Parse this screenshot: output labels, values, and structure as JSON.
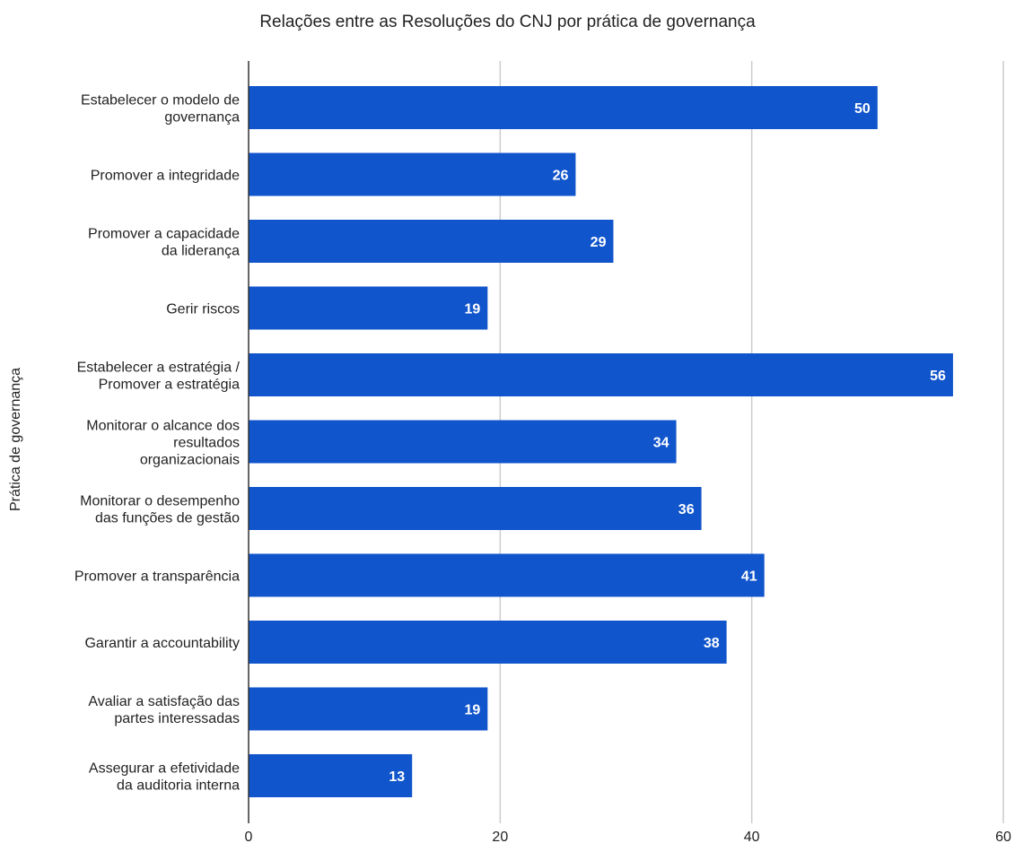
{
  "chart_data": {
    "type": "bar",
    "orientation": "horizontal",
    "title": "Relações entre as Resoluções do CNJ por prática de governança",
    "xlabel": "",
    "ylabel": "Prática de governança",
    "categories": [
      [
        "Estabelecer o modelo de",
        "governança"
      ],
      [
        "Promover a integridade"
      ],
      [
        "Promover a capacidade",
        "da liderança"
      ],
      [
        "Gerir riscos"
      ],
      [
        "Estabelecer a estratégia /",
        "Promover a estratégia"
      ],
      [
        "Monitorar o alcance dos",
        "resultados",
        "organizacionais"
      ],
      [
        "Monitorar o desempenho",
        "das funções de gestão"
      ],
      [
        "Promover a transparência"
      ],
      [
        "Garantir a accountability"
      ],
      [
        "Avaliar a satisfação das",
        "partes interessadas"
      ],
      [
        "Assegurar a efetividade",
        "da auditoria interna"
      ]
    ],
    "values": [
      50,
      26,
      29,
      19,
      56,
      34,
      36,
      41,
      38,
      19,
      13
    ],
    "data_labels": [
      "50",
      "26",
      "29",
      "19",
      "56",
      "34",
      "36",
      "41",
      "38",
      "19",
      "13"
    ],
    "xlim": [
      0,
      60
    ],
    "x_ticks": [
      0,
      20,
      40,
      60
    ],
    "x_tick_labels": [
      "0",
      "20",
      "40",
      "60"
    ],
    "grid": "vertical",
    "legend": "none",
    "colors": {
      "bar": "#1155cc",
      "bar_label": "#ffffff",
      "grid": "#cccccc",
      "axis": "#333333",
      "text": "#222222"
    }
  }
}
